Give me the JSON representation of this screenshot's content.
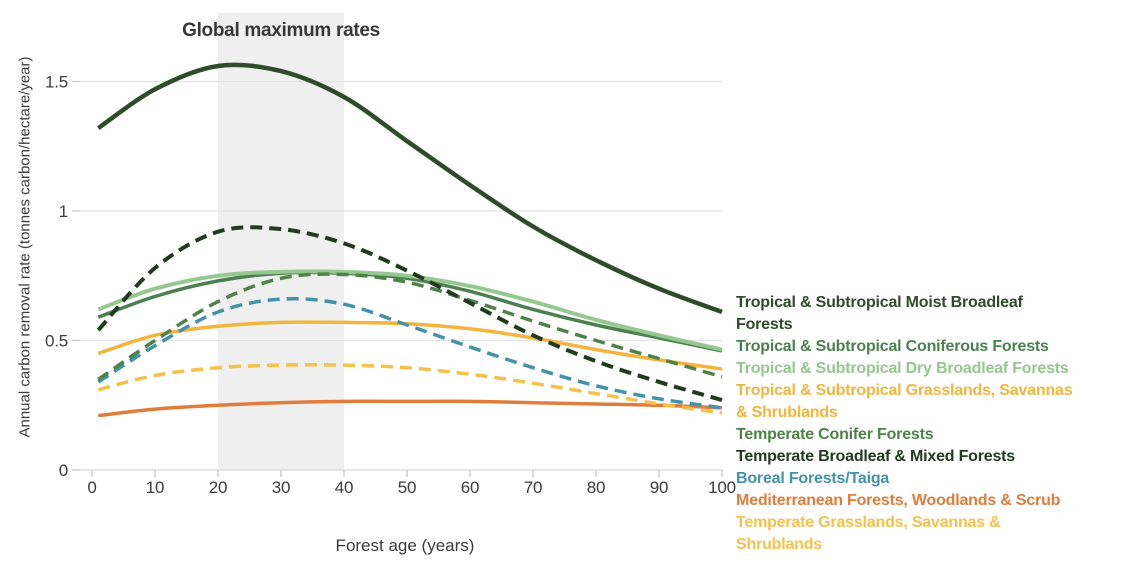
{
  "chart_data": {
    "type": "line",
    "title": "Global maximum rates",
    "xlabel": "Forest age (years)",
    "ylabel": "Annual carbon removal rate (tonnes carbon/hectare/year)",
    "xlim": [
      0,
      100
    ],
    "ylim": [
      0,
      1.78
    ],
    "x_ticks": [
      "0",
      "10",
      "20",
      "30",
      "40",
      "50",
      "60",
      "70",
      "80",
      "90",
      "100"
    ],
    "y_ticks": [
      "0",
      "0.5",
      "1",
      "1.5"
    ],
    "grid": "horizontal",
    "legend_position": "right",
    "highlight_band": {
      "x_from": 20,
      "x_to": 40,
      "color": "#efefef"
    },
    "x": [
      1,
      10,
      20,
      30,
      40,
      50,
      60,
      70,
      80,
      90,
      100
    ],
    "series": [
      {
        "name": "Tropical & Subtropical Moist Broadleaf Forests",
        "legend_lines": [
          "Tropical & Subtropical Moist Broadleaf",
          "Forests"
        ],
        "color": "#2e4c29",
        "style": "solid",
        "width": 4.5,
        "values": [
          1.32,
          1.47,
          1.56,
          1.54,
          1.44,
          1.27,
          1.1,
          0.94,
          0.81,
          0.7,
          0.61
        ]
      },
      {
        "name": "Tropical & Subtropical Coniferous Forests",
        "legend_lines": [
          "Tropical & Subtropical Coniferous Forests"
        ],
        "color": "#4c8050",
        "style": "solid",
        "width": 3.5,
        "values": [
          0.59,
          0.67,
          0.73,
          0.76,
          0.76,
          0.74,
          0.69,
          0.62,
          0.56,
          0.51,
          0.46
        ]
      },
      {
        "name": "Tropical & Subtropical Dry Broadleaf Forests",
        "legend_lines": [
          "Tropical & Subtropical Dry Broadleaf Forests"
        ],
        "color": "#94c88e",
        "style": "solid",
        "width": 4,
        "values": [
          0.62,
          0.7,
          0.75,
          0.765,
          0.765,
          0.75,
          0.71,
          0.65,
          0.58,
          0.52,
          0.465
        ]
      },
      {
        "name": "Tropical & Subtropical Grasslands, Savannas & Shrublands",
        "legend_lines": [
          "Tropical & Subtropical Grasslands, Savannas",
          "& Shrublands"
        ],
        "color": "#f2b53d",
        "style": "solid",
        "width": 3.5,
        "values": [
          0.45,
          0.52,
          0.555,
          0.57,
          0.57,
          0.565,
          0.545,
          0.51,
          0.465,
          0.425,
          0.39
        ]
      },
      {
        "name": "Temperate Conifer Forests",
        "legend_lines": [
          "Temperate Conifer Forests"
        ],
        "color": "#4d8347",
        "style": "dashed",
        "width": 3.5,
        "values": [
          0.35,
          0.5,
          0.65,
          0.74,
          0.755,
          0.725,
          0.655,
          0.575,
          0.5,
          0.43,
          0.36
        ]
      },
      {
        "name": "Temperate Broadleaf & Mixed Forests",
        "legend_lines": [
          "Temperate Broadleaf & Mixed Forests"
        ],
        "color": "#233a20",
        "style": "dashed",
        "width": 4,
        "values": [
          0.54,
          0.78,
          0.92,
          0.93,
          0.875,
          0.77,
          0.645,
          0.52,
          0.42,
          0.34,
          0.27
        ]
      },
      {
        "name": "Boreal Forests/Taiga",
        "legend_lines": [
          "Boreal Forests/Taiga"
        ],
        "color": "#4292ab",
        "style": "dashed",
        "width": 3.5,
        "values": [
          0.34,
          0.48,
          0.61,
          0.66,
          0.64,
          0.56,
          0.475,
          0.395,
          0.325,
          0.275,
          0.24
        ]
      },
      {
        "name": "Mediterranean Forests, Woodlands & Scrub",
        "legend_lines": [
          "Mediterranean Forests, Woodlands & Scrub"
        ],
        "color": "#de7d3c",
        "style": "solid",
        "width": 3.5,
        "values": [
          0.21,
          0.235,
          0.25,
          0.26,
          0.265,
          0.265,
          0.265,
          0.26,
          0.255,
          0.25,
          0.24
        ]
      },
      {
        "name": "Temperate Grasslands, Savannas & Shrublands",
        "legend_lines": [
          "Temperate Grasslands, Savannas &",
          "Shrublands"
        ],
        "color": "#f5c14c",
        "style": "dashed",
        "width": 3.5,
        "values": [
          0.31,
          0.365,
          0.395,
          0.405,
          0.405,
          0.395,
          0.37,
          0.335,
          0.295,
          0.255,
          0.22
        ]
      }
    ]
  },
  "styles": {
    "background": "#ffffff",
    "grid_color": "#e2e2e2",
    "axis_color": "#d8d8d8",
    "tick_color": "#c8c8c8",
    "text_color": "#3c3c3c",
    "title_color": "#383838"
  }
}
